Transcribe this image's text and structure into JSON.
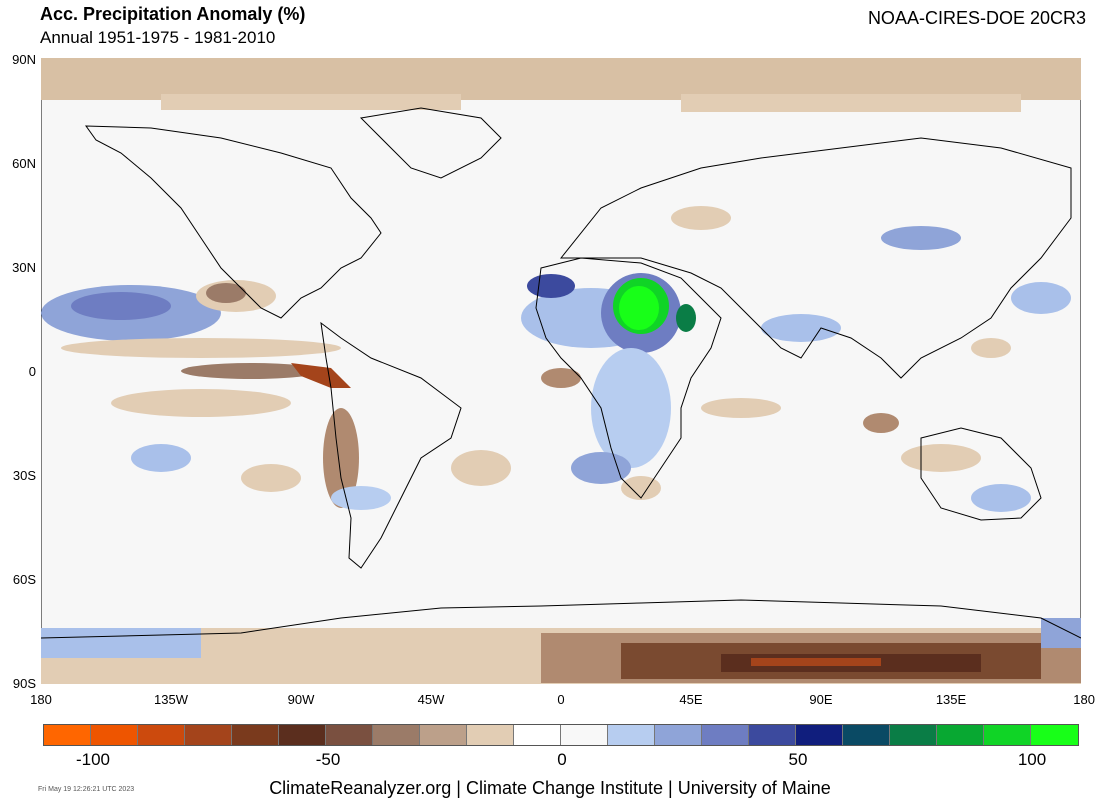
{
  "header": {
    "title": "Acc. Precipitation Anomaly (%)",
    "subtitle": "Annual 1951-1975 - 1981-2010",
    "source": "NOAA-CIRES-DOE 20CR3"
  },
  "map": {
    "lat_ticks": [
      "90N",
      "60N",
      "30N",
      "0",
      "30S",
      "60S",
      "90S"
    ],
    "lon_ticks": [
      "180",
      "135W",
      "90W",
      "45W",
      "0",
      "45E",
      "90E",
      "135E",
      "180"
    ]
  },
  "colorbar": {
    "colors": [
      "#ff6600",
      "#ee5500",
      "#cc4a0d",
      "#a4441b",
      "#7a3a1d",
      "#5b2e1e",
      "#7a5040",
      "#9b7b68",
      "#bca08a",
      "#e2cdb4",
      "#ffffff",
      "#f8f8f8",
      "#b7cdf0",
      "#8fa4d8",
      "#6e7dc2",
      "#3c4a9e",
      "#101e7d",
      "#0a4a64",
      "#0a7d46",
      "#08a832",
      "#10d426",
      "#18ff18"
    ],
    "labels": [
      "-100",
      "-50",
      "0",
      "50",
      "100"
    ]
  },
  "footer": {
    "credit": "ClimateReanalyzer.org | Climate Change Institute | University of Maine",
    "timestamp": "Fri May 19 12:26:21 UTC 2023"
  }
}
